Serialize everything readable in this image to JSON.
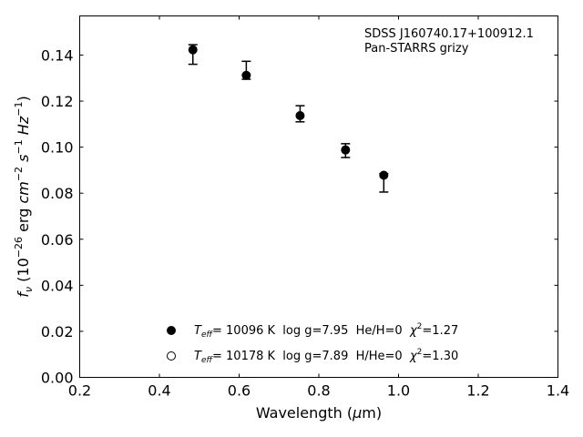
{
  "chart_data": {
    "type": "scatter",
    "xlabel": "Wavelength (μm)",
    "ylabel": "f_ν (10^-26 erg cm^-2 s^-1 Hz^-1)",
    "xlim": [
      0.2,
      1.4
    ],
    "ylim": [
      0.0,
      0.157
    ],
    "xticks": [
      0.2,
      0.4,
      0.6,
      0.8,
      1.0,
      1.2,
      1.4
    ],
    "xtick_labels": [
      "0.2",
      "0.4",
      "0.6",
      "0.8",
      "1.0",
      "1.2",
      "1.4"
    ],
    "yticks": [
      0.0,
      0.02,
      0.04,
      0.06,
      0.08,
      0.1,
      0.12,
      0.14
    ],
    "ytick_labels": [
      "0.00",
      "0.02",
      "0.04",
      "0.06",
      "0.08",
      "0.10",
      "0.12",
      "0.14"
    ],
    "grid": false,
    "annotations": [
      "SDSS J160740.17+100912.1",
      "Pan-STARRS grizy"
    ],
    "observed": {
      "x": [
        0.484,
        0.618,
        0.753,
        0.867,
        0.963
      ],
      "y_low": [
        0.136,
        0.1295,
        0.111,
        0.0955,
        0.0805
      ],
      "y_high": [
        0.1445,
        0.1373,
        0.118,
        0.1015,
        0.0885
      ]
    },
    "series": [
      {
        "marker": "filled-circle",
        "x": [
          0.484,
          0.618,
          0.753,
          0.867,
          0.963
        ],
        "y": [
          0.1423,
          0.1312,
          0.1137,
          0.0988,
          0.0878
        ]
      },
      {
        "marker": "open-circle",
        "x": [],
        "y": []
      }
    ],
    "legend": {
      "placement": "lower-center",
      "entries": [
        {
          "marker": "filled-circle",
          "teff_label": "T",
          "teff_sub": "eff",
          "text": "= 10096 K  log g=7.95  He/H=0  ",
          "chi_sym": "χ",
          "chi_sup": "2",
          "chi_val": "=1.27"
        },
        {
          "marker": "open-circle",
          "teff_label": "T",
          "teff_sub": "eff",
          "text": "= 10178 K  log g=7.89  H/He=0  ",
          "chi_sym": "χ",
          "chi_sup": "2",
          "chi_val": "=1.30"
        }
      ]
    }
  }
}
